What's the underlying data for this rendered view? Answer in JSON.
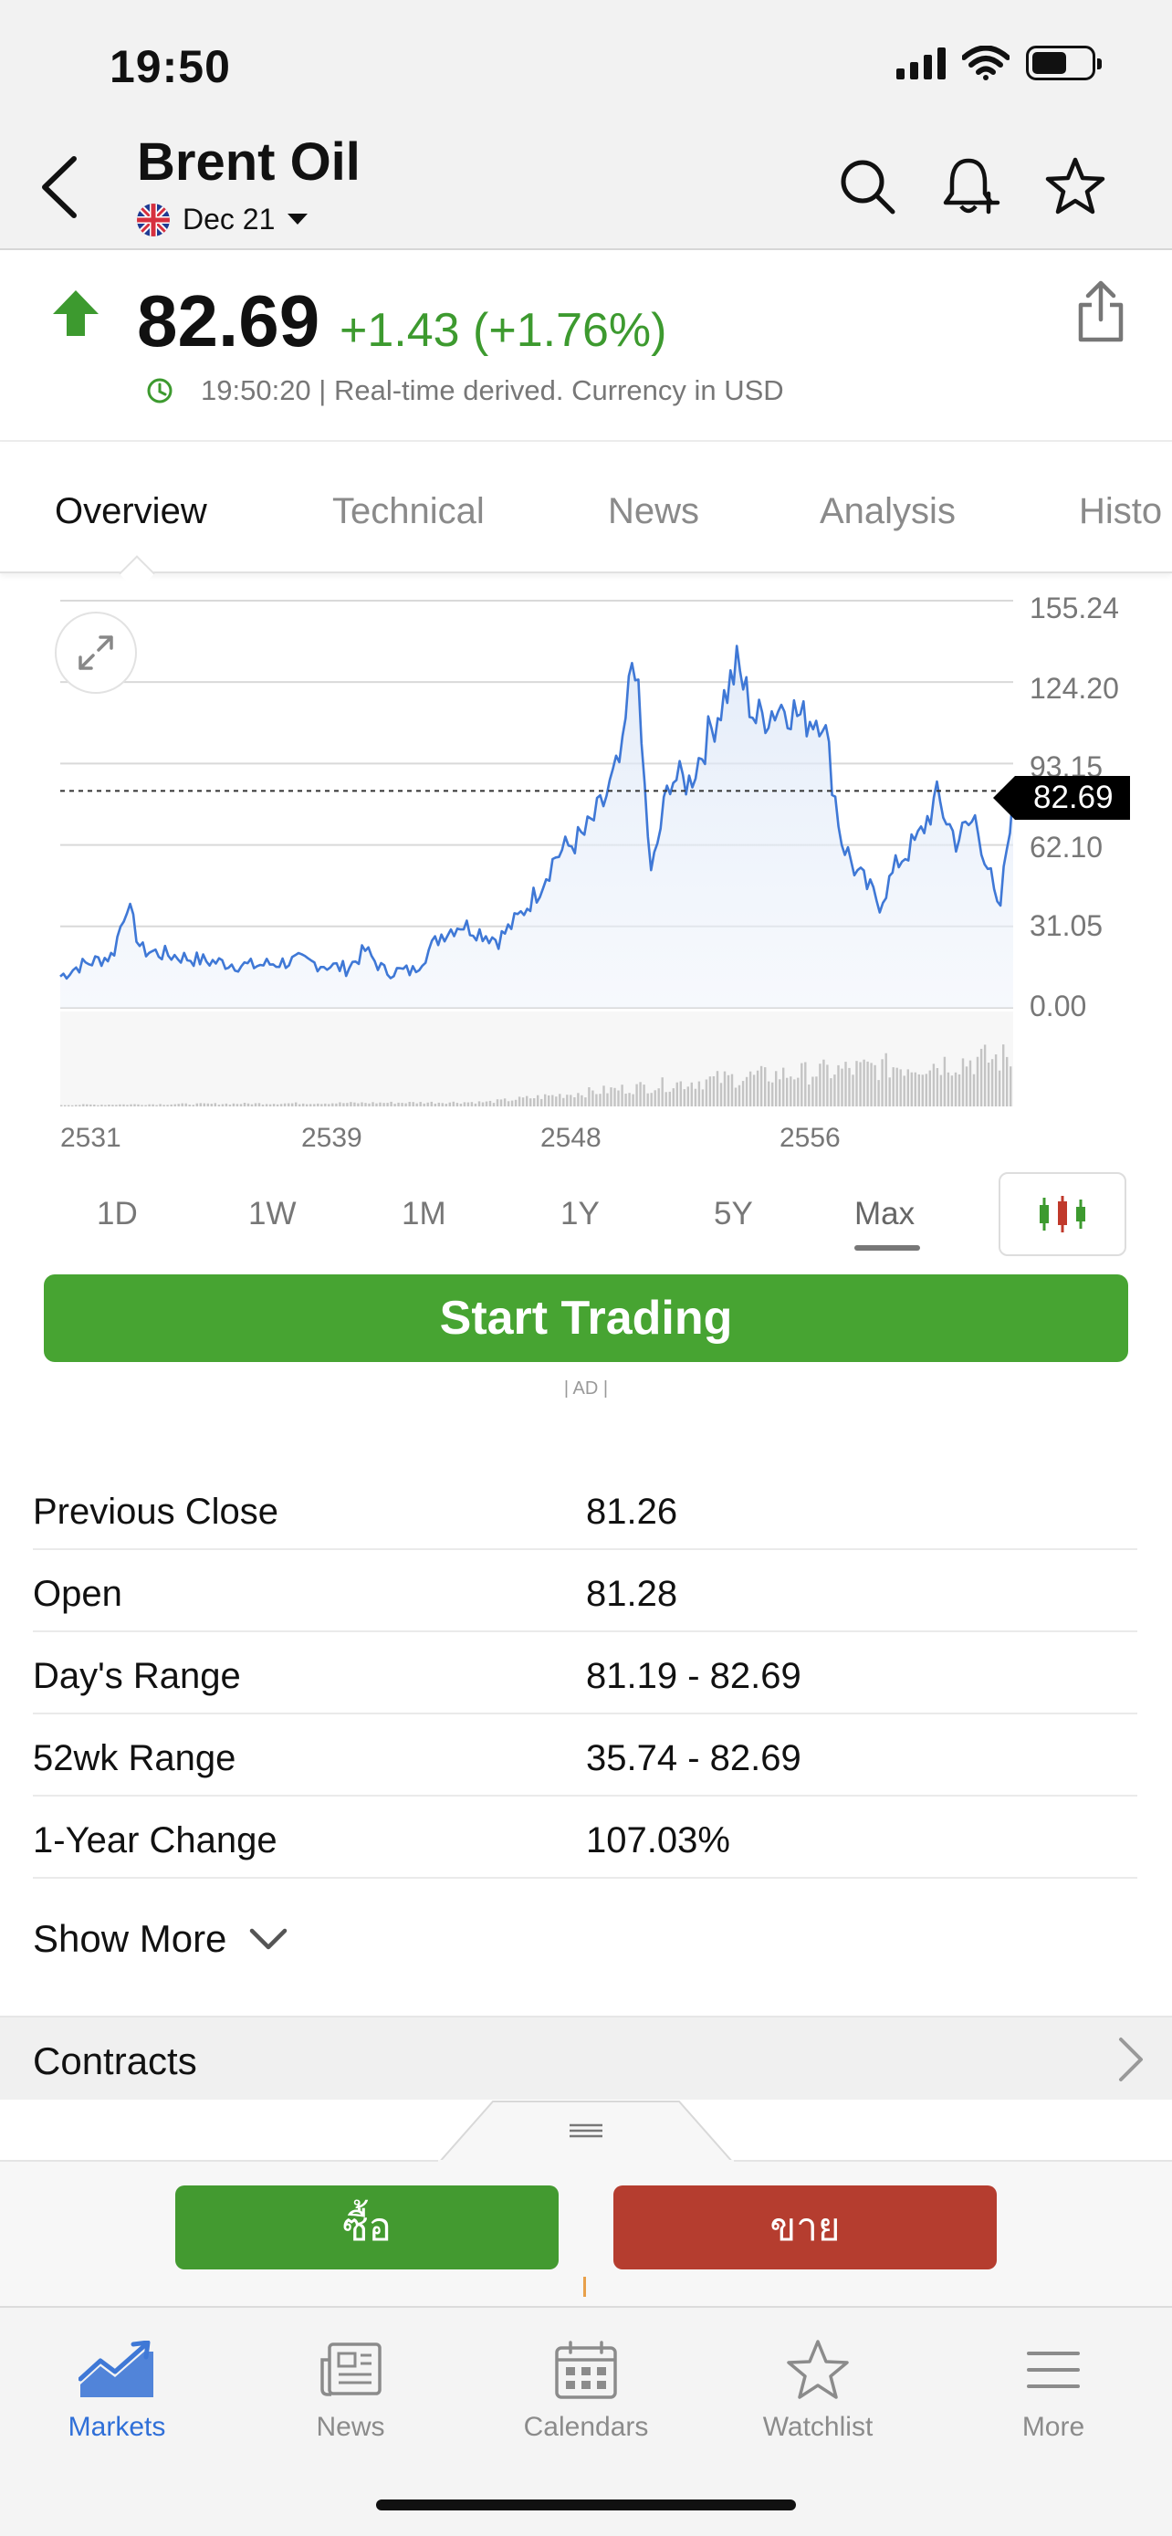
{
  "status_bar": {
    "time": "19:50"
  },
  "header": {
    "title": "Brent Oil",
    "contract": "Dec 21"
  },
  "quote": {
    "price": "82.69",
    "change": "+1.43 (+1.76%)",
    "meta": "19:50:20 | Real-time derived. Currency in USD"
  },
  "tabs": [
    {
      "label": "Overview"
    },
    {
      "label": "Technical"
    },
    {
      "label": "News"
    },
    {
      "label": "Analysis"
    },
    {
      "label": "Histo"
    }
  ],
  "chart_data": {
    "type": "line",
    "y_ticks": [
      "155.24",
      "124.20",
      "93.15",
      "62.10",
      "31.05",
      "0.00"
    ],
    "x_ticks": [
      "2531",
      "2539",
      "2548",
      "2556"
    ],
    "current_price_label": "82.69",
    "current_price": 82.69,
    "ylim": [
      0,
      155.24
    ],
    "grid": true,
    "has_volume_bars": true,
    "line_color": "#3f78d6"
  },
  "ranges": [
    "1D",
    "1W",
    "1M",
    "1Y",
    "5Y",
    "Max"
  ],
  "active_range": "Max",
  "cta": {
    "start_trading": "Start Trading",
    "ad_label": "| AD |"
  },
  "stats": [
    {
      "label": "Previous Close",
      "value": "81.26"
    },
    {
      "label": "Open",
      "value": "81.28"
    },
    {
      "label": "Day's Range",
      "value": "81.19 - 82.69"
    },
    {
      "label": "52wk Range",
      "value": "35.74 - 82.69"
    },
    {
      "label": "1-Year Change",
      "value": "107.03%"
    }
  ],
  "show_more": "Show More",
  "contracts": {
    "title": "Contracts"
  },
  "trade": {
    "buy": "ซื้อ",
    "sell": "ขาย",
    "buy_color": "#439a30",
    "sell_color": "#b53d2f"
  },
  "bottom_nav": [
    {
      "label": "Markets",
      "icon": "markets-icon",
      "active": true
    },
    {
      "label": "News",
      "icon": "news-icon"
    },
    {
      "label": "Calendars",
      "icon": "calendar-icon"
    },
    {
      "label": "Watchlist",
      "icon": "star-icon"
    },
    {
      "label": "More",
      "icon": "menu-icon"
    }
  ],
  "colors": {
    "accent": "#2f6fd8",
    "up": "#3d9a2f",
    "cta": "#47a432"
  }
}
